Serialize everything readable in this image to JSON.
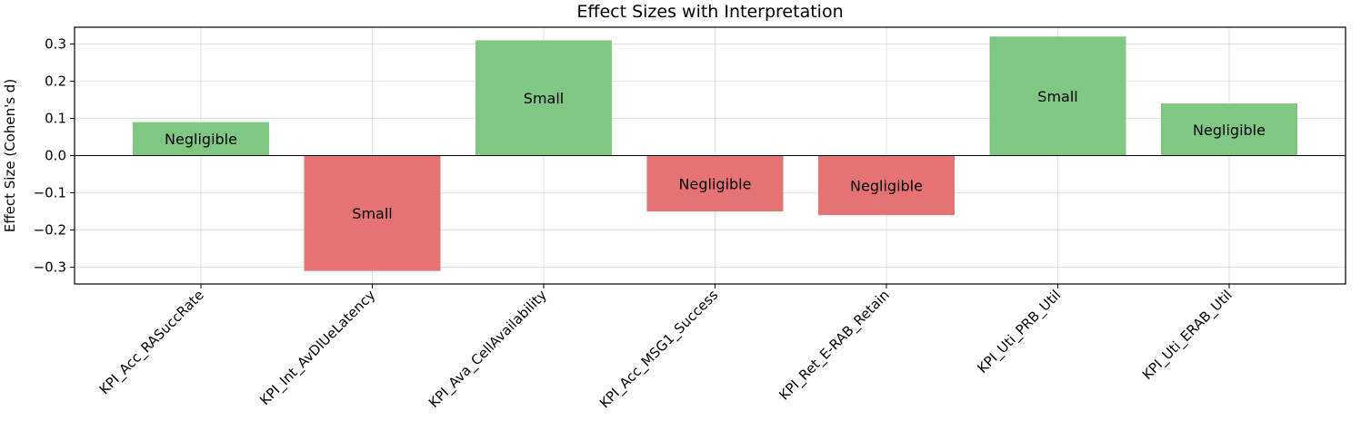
{
  "chart_data": {
    "type": "bar",
    "title": "Effect Sizes with Interpretation",
    "xlabel": "",
    "ylabel": "Effect Size (Cohen's d)",
    "categories": [
      "KPI_Acc_RASuccRate",
      "KPI_Int_AvDlUeLatency",
      "KPI_Ava_CellAvailability",
      "KPI_Acc_MSG1_Success",
      "KPI_Ret_E-RAB_Retain",
      "KPI_Uti_PRB_Util",
      "KPI_Uti_ERAB_Util"
    ],
    "values": [
      0.09,
      -0.31,
      0.31,
      -0.15,
      -0.16,
      0.32,
      0.14
    ],
    "bar_labels": [
      "Negligible",
      "Small",
      "Small",
      "Negligible",
      "Negligible",
      "Small",
      "Negligible"
    ],
    "ylim": [
      -0.345,
      0.345
    ],
    "yticks": [
      -0.3,
      -0.2,
      -0.1,
      0.0,
      0.1,
      0.2,
      0.3
    ],
    "ytick_labels": [
      "−0.3",
      "−0.2",
      "−0.1",
      "0.0",
      "0.1",
      "0.2",
      "0.3"
    ],
    "grid": true,
    "zero_line": true,
    "colors": {
      "positive": "#81c784",
      "negative": "#e57373"
    }
  }
}
